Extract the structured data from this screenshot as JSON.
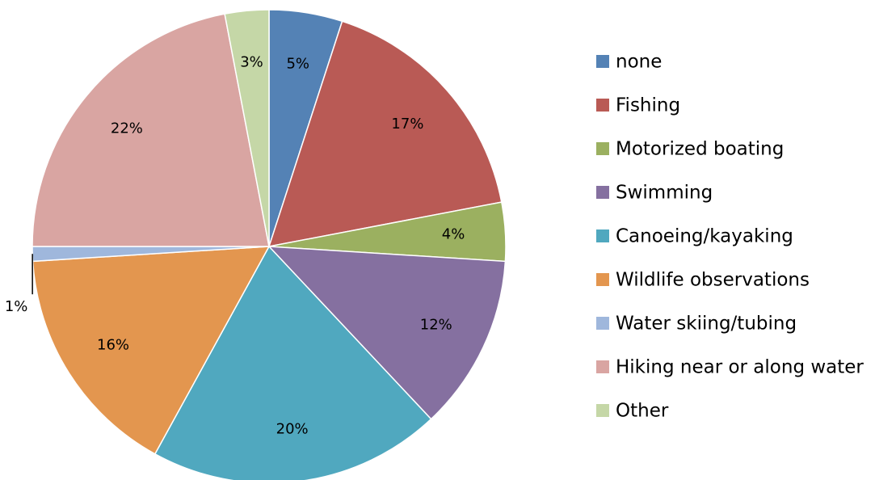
{
  "chart_data": {
    "type": "pie",
    "categories": [
      "none",
      "Fishing",
      "Motorized boating",
      "Swimming",
      "Canoeing/kayaking",
      "Wildlife observations",
      "Water skiing/tubing",
      "Hiking near or along water",
      "Other"
    ],
    "values": [
      5,
      17,
      4,
      12,
      20,
      16,
      1,
      22,
      3
    ],
    "value_labels": [
      "5%",
      "17%",
      "4%",
      "12%",
      "20%",
      "16%",
      "1%",
      "22%",
      "3%"
    ],
    "colors": [
      "#5482b5",
      "#b95a55",
      "#9bb060",
      "#8570a0",
      "#50a8bf",
      "#e3964f",
      "#9fb7dc",
      "#d9a5a2",
      "#c5d7a7"
    ],
    "legend": "right"
  }
}
